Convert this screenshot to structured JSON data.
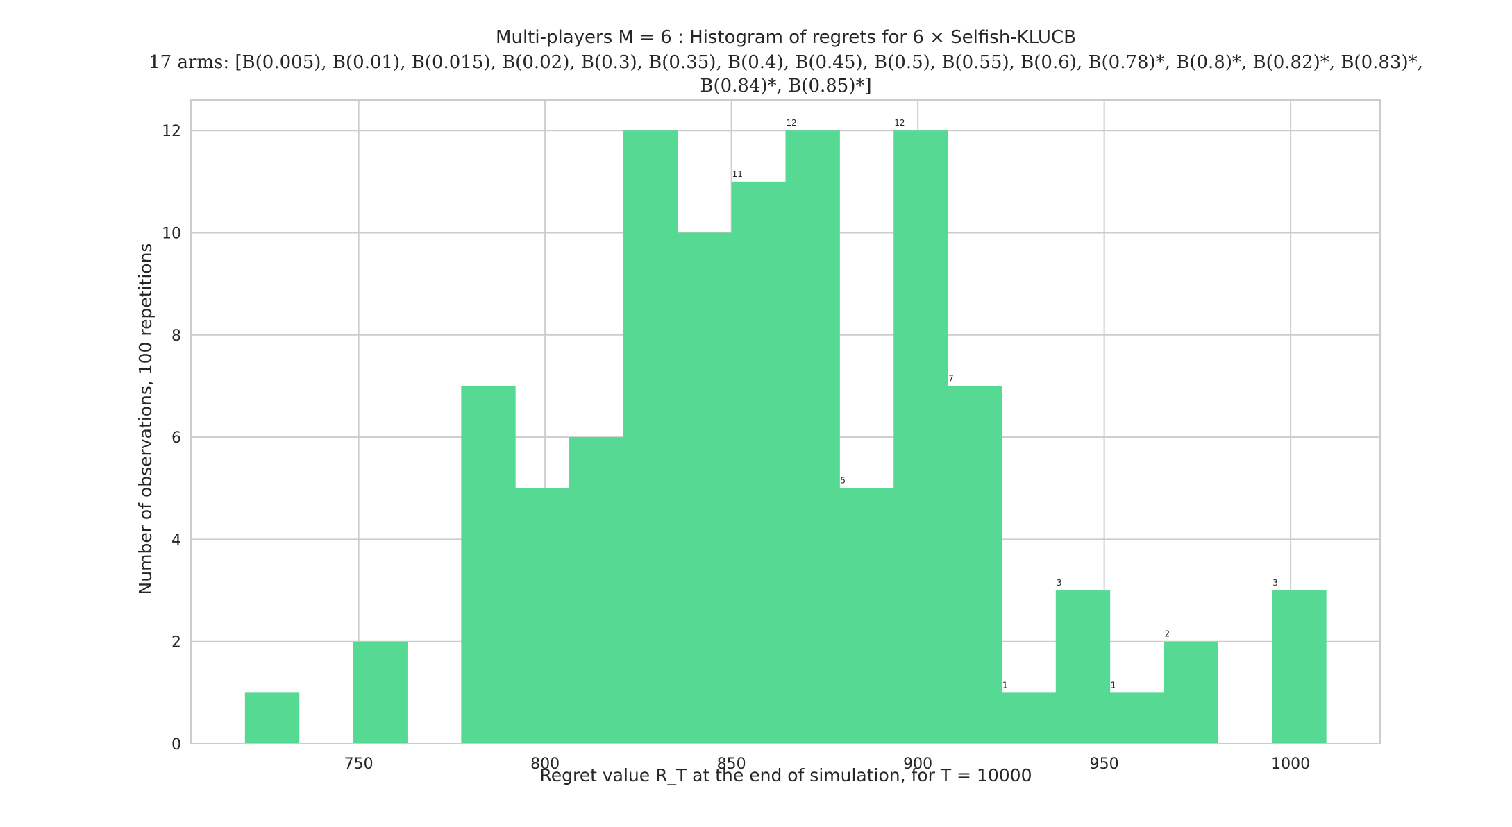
{
  "chart_data": {
    "type": "bar",
    "title": "Multi-players M = 6 : Histogram of regrets for 6 × Selfish-KLUCB",
    "subtitle_line1": "17 arms: [B(0.005), B(0.01), B(0.015), B(0.02), B(0.3), B(0.35), B(0.4), B(0.45), B(0.5), B(0.55), B(0.6), B(0.78)*, B(0.8)*, B(0.82)*, B(0.83)*,",
    "subtitle_line2": "B(0.84)*, B(0.85)*]",
    "xlabel": "Regret value R_T at the end of simulation, for T = 10000",
    "ylabel": "Number of observations, 100 repetitions",
    "xlim": [
      705,
      1024
    ],
    "ylim": [
      0,
      12.6
    ],
    "xticks": [
      750,
      800,
      850,
      900,
      950,
      1000
    ],
    "yticks": [
      0,
      2,
      4,
      6,
      8,
      10,
      12
    ],
    "grid": true,
    "bar_color": "#55d993",
    "bins": [
      {
        "x0": 719.5,
        "x1": 734.0,
        "value": 1,
        "label": ""
      },
      {
        "x0": 734.0,
        "x1": 748.5,
        "value": 0,
        "label": ""
      },
      {
        "x0": 748.5,
        "x1": 763.0,
        "value": 2,
        "label": ""
      },
      {
        "x0": 763.0,
        "x1": 777.5,
        "value": 0,
        "label": ""
      },
      {
        "x0": 777.5,
        "x1": 792.0,
        "value": 7,
        "label": ""
      },
      {
        "x0": 792.0,
        "x1": 806.5,
        "value": 5,
        "label": ""
      },
      {
        "x0": 806.5,
        "x1": 821.0,
        "value": 6,
        "label": ""
      },
      {
        "x0": 821.0,
        "x1": 835.5,
        "value": 12,
        "label": ""
      },
      {
        "x0": 835.5,
        "x1": 850.0,
        "value": 10,
        "label": ""
      },
      {
        "x0": 850.0,
        "x1": 864.5,
        "value": 11,
        "label": "11"
      },
      {
        "x0": 864.5,
        "x1": 879.0,
        "value": 12,
        "label": "12"
      },
      {
        "x0": 879.0,
        "x1": 893.5,
        "value": 5,
        "label": "5"
      },
      {
        "x0": 893.5,
        "x1": 908.0,
        "value": 12,
        "label": "12"
      },
      {
        "x0": 908.0,
        "x1": 922.5,
        "value": 7,
        "label": "7"
      },
      {
        "x0": 922.5,
        "x1": 937.0,
        "value": 1,
        "label": "1"
      },
      {
        "x0": 937.0,
        "x1": 951.5,
        "value": 3,
        "label": "3"
      },
      {
        "x0": 951.5,
        "x1": 966.0,
        "value": 1,
        "label": "1"
      },
      {
        "x0": 966.0,
        "x1": 980.5,
        "value": 2,
        "label": "2"
      },
      {
        "x0": 980.5,
        "x1": 995.0,
        "value": 0,
        "label": ""
      },
      {
        "x0": 995.0,
        "x1": 1009.5,
        "value": 3,
        "label": "3"
      }
    ]
  }
}
